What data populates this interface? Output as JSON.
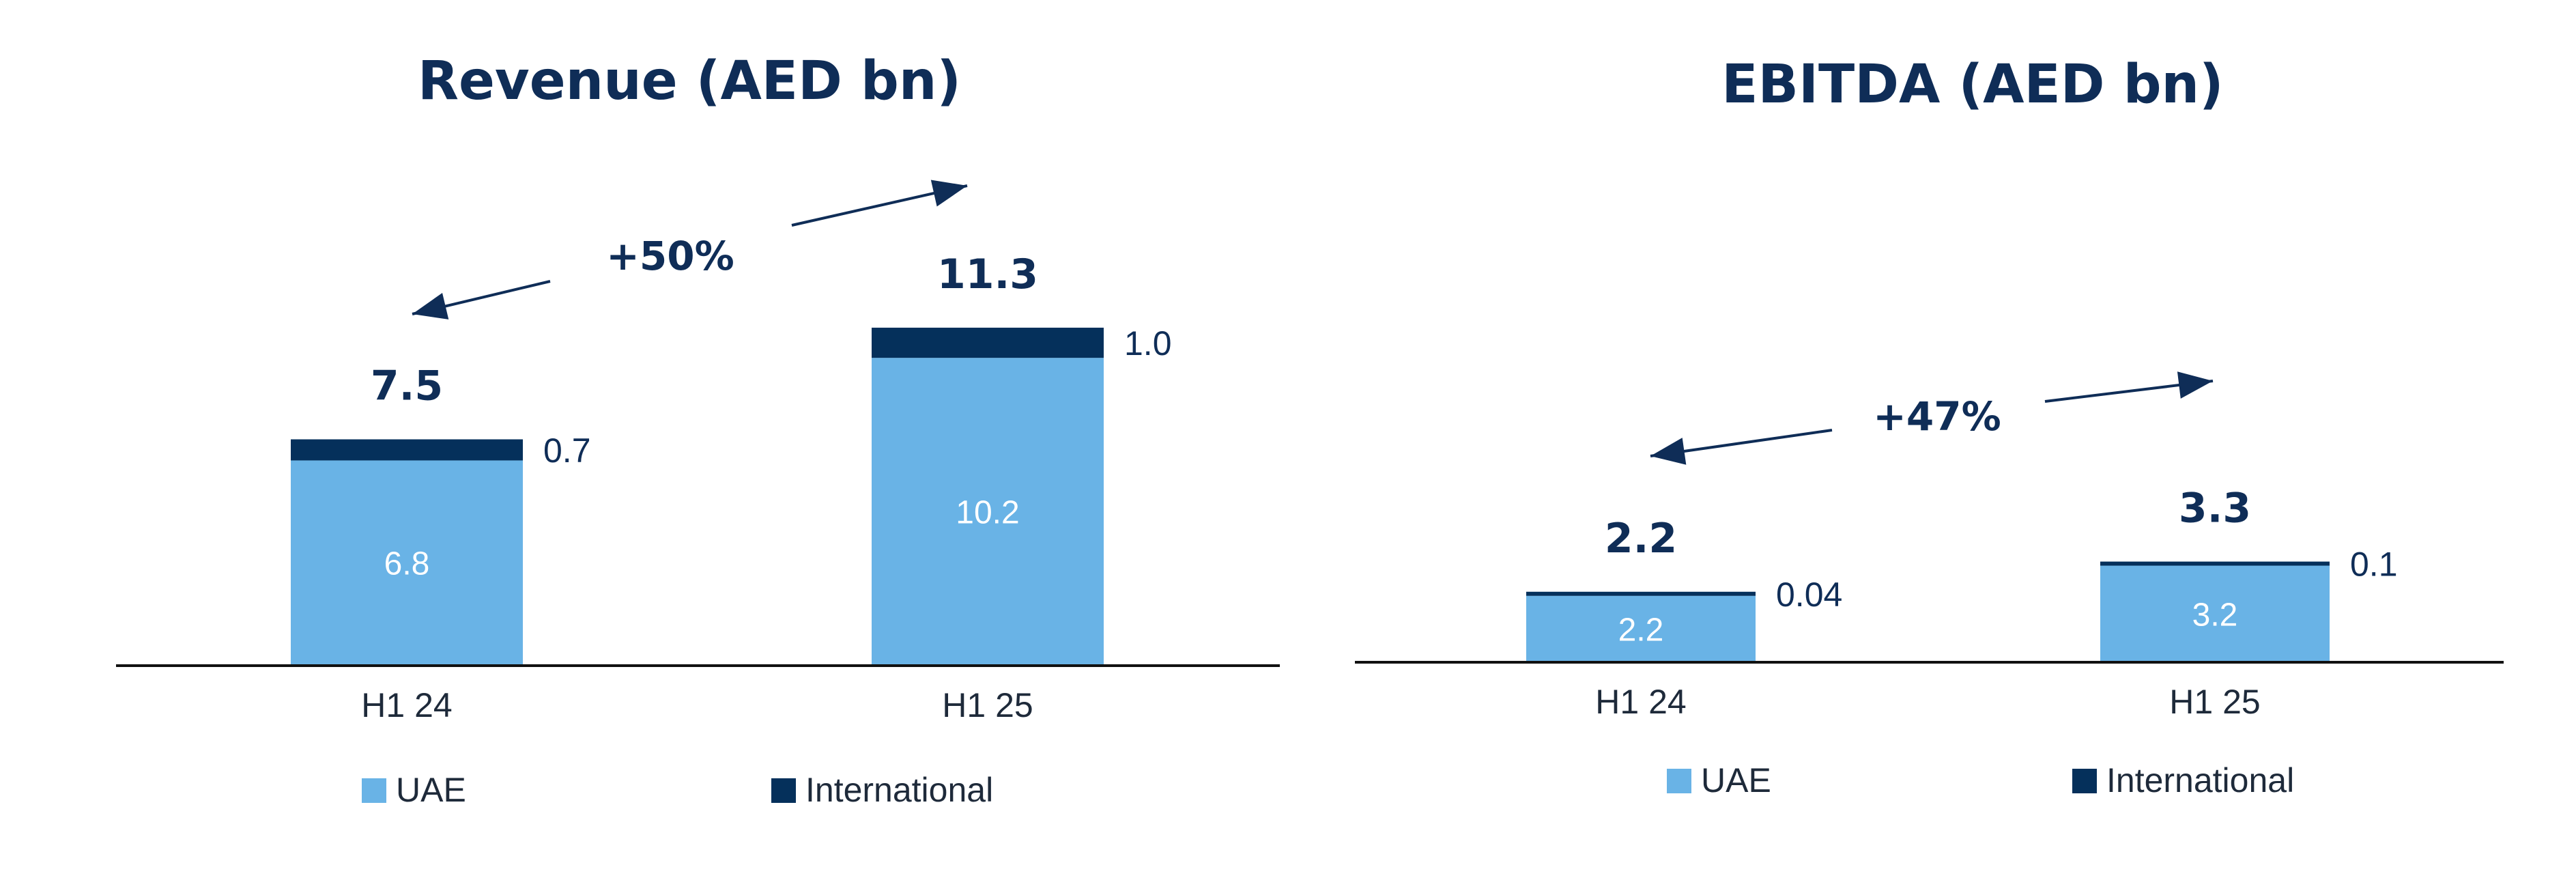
{
  "colors": {
    "uae": "#69b3e6",
    "international": "#05305b",
    "text_dark": "#0f2d57",
    "axis": "#111111"
  },
  "chart_data": [
    {
      "type": "bar",
      "stacked": true,
      "title": "Revenue (AED bn)",
      "categories": [
        "H1 24",
        "H1 25"
      ],
      "series": [
        {
          "name": "UAE",
          "values": [
            6.8,
            10.2
          ],
          "value_labels": [
            "6.8",
            "10.2"
          ]
        },
        {
          "name": "International",
          "values": [
            0.7,
            1.0
          ],
          "value_labels": [
            "0.7",
            "1.0"
          ]
        }
      ],
      "totals": [
        "7.5",
        "11.3"
      ],
      "growth": "+50%",
      "ylim": [
        0,
        11.3
      ],
      "xlabel": "",
      "ylabel": "",
      "grid": false,
      "legend": "bottom"
    },
    {
      "type": "bar",
      "stacked": true,
      "title": "EBITDA (AED bn)",
      "categories": [
        "H1 24",
        "H1 25"
      ],
      "series": [
        {
          "name": "UAE",
          "values": [
            2.2,
            3.2
          ],
          "value_labels": [
            "2.2",
            "3.2"
          ]
        },
        {
          "name": "International",
          "values": [
            0.04,
            0.1
          ],
          "value_labels": [
            "0.04",
            "0.1"
          ]
        }
      ],
      "totals": [
        "2.2",
        "3.3"
      ],
      "growth": "+47%",
      "ylim": [
        0,
        11.3
      ],
      "xlabel": "",
      "ylabel": "",
      "grid": false,
      "legend": "bottom"
    }
  ]
}
